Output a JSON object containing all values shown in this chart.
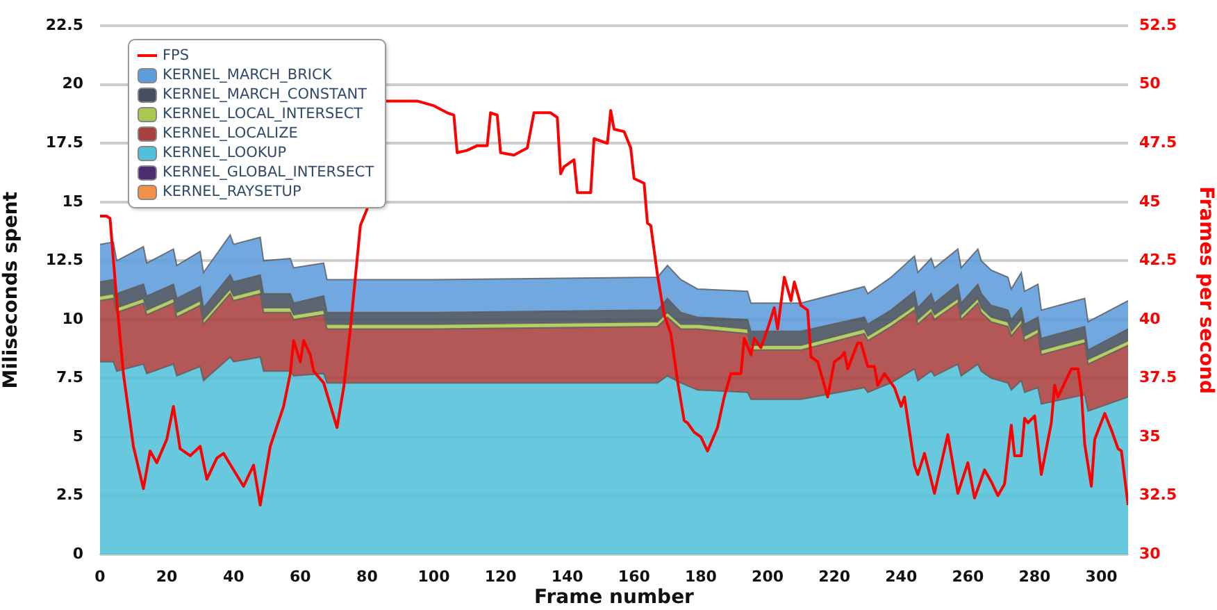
{
  "chart_data": {
    "type": "area",
    "stacked": true,
    "xlabel": "Frame number",
    "ylabel": "Miliseconds spent",
    "y2label": "Frames per second",
    "xlim": [
      0,
      308
    ],
    "xticks": [
      0,
      20,
      40,
      60,
      80,
      100,
      120,
      140,
      160,
      180,
      200,
      220,
      240,
      260,
      280,
      300
    ],
    "ylim": [
      0,
      22.5
    ],
    "yticks": [
      0,
      2.5,
      5,
      7.5,
      10,
      12.5,
      15,
      17.5,
      20,
      22.5
    ],
    "y2lim": [
      30,
      52.5
    ],
    "y2ticks": [
      30,
      32.5,
      35,
      37.5,
      40,
      42.5,
      45,
      47.5,
      50,
      52.5
    ],
    "grid": "y",
    "legend": "top left",
    "x": [
      0,
      4,
      5,
      13,
      14,
      22,
      23,
      30,
      31,
      39,
      40,
      48,
      49,
      57,
      58,
      67,
      68,
      100,
      167,
      170,
      174,
      179,
      194,
      195,
      210,
      229,
      230,
      237,
      244,
      245,
      249,
      250,
      257,
      258,
      263,
      264,
      267,
      272,
      273,
      276,
      277,
      281,
      282,
      295,
      296,
      308
    ],
    "series": [
      {
        "name": "KERNEL_RAYSETUP",
        "color": "#f0904a",
        "values": [
          null,
          null,
          null,
          null,
          null,
          null,
          null,
          null,
          null,
          null,
          null,
          null,
          null,
          null,
          null,
          null,
          null,
          null,
          null,
          null,
          null,
          null,
          null,
          null,
          null,
          null,
          null,
          null,
          null,
          null,
          null,
          null,
          null,
          null,
          null,
          null,
          null,
          null,
          null,
          null,
          null,
          null,
          null,
          null,
          null,
          null
        ]
      },
      {
        "name": "KERNEL_GLOBAL_INTERSECT",
        "color": "#4b2c70",
        "values": [
          null,
          null,
          null,
          null,
          null,
          null,
          null,
          null,
          null,
          null,
          null,
          null,
          null,
          null,
          null,
          null,
          null,
          null,
          null,
          null,
          null,
          null,
          null,
          null,
          null,
          null,
          null,
          null,
          null,
          null,
          null,
          null,
          null,
          null,
          null,
          null,
          null,
          null,
          null,
          null,
          null,
          null,
          null,
          null,
          null,
          null
        ]
      },
      {
        "name": "KERNEL_LOOKUP",
        "color": "#52c0da",
        "values": [
          8.2,
          8.2,
          7.8,
          8.1,
          7.7,
          8.1,
          7.6,
          8.0,
          7.4,
          8.4,
          8.2,
          8.4,
          7.8,
          7.8,
          7.6,
          7.7,
          7.3,
          7.3,
          7.3,
          7.6,
          7.3,
          7.0,
          6.9,
          6.6,
          6.6,
          7.1,
          6.9,
          7.3,
          7.9,
          7.4,
          7.8,
          7.6,
          8.1,
          7.6,
          8.1,
          7.8,
          7.5,
          7.3,
          7.0,
          7.4,
          6.9,
          7.1,
          6.4,
          6.8,
          6.1,
          6.7
        ]
      },
      {
        "name": "KERNEL_LOCALIZE",
        "color": "#a84040",
        "values": [
          2.6,
          2.7,
          2.5,
          2.6,
          2.5,
          2.6,
          2.5,
          2.6,
          2.4,
          2.7,
          2.6,
          2.7,
          2.5,
          2.5,
          2.4,
          2.5,
          2.3,
          2.3,
          2.4,
          2.5,
          2.3,
          2.6,
          2.5,
          2.1,
          2.1,
          2.3,
          2.2,
          2.4,
          2.5,
          2.4,
          2.5,
          2.4,
          2.6,
          2.4,
          2.6,
          2.5,
          2.4,
          2.4,
          2.3,
          2.4,
          2.2,
          2.3,
          2.1,
          2.2,
          2.0,
          2.2
        ]
      },
      {
        "name": "KERNEL_LOCAL_INTERSECT",
        "color": "#a8c850",
        "values": [
          0.2,
          0.2,
          0.2,
          0.2,
          0.2,
          0.2,
          0.2,
          0.2,
          0.2,
          0.2,
          0.2,
          0.2,
          0.2,
          0.2,
          0.2,
          0.2,
          0.2,
          0.2,
          0.2,
          0.2,
          0.2,
          0.2,
          0.2,
          0.2,
          0.2,
          0.2,
          0.2,
          0.2,
          0.2,
          0.2,
          0.2,
          0.2,
          0.2,
          0.2,
          0.2,
          0.2,
          0.2,
          0.2,
          0.2,
          0.2,
          0.2,
          0.2,
          0.2,
          0.2,
          0.2,
          0.2
        ]
      },
      {
        "name": "KERNEL_MARCH_CONSTANT",
        "color": "#46505f",
        "values": [
          0.6,
          0.6,
          0.6,
          0.6,
          0.6,
          0.6,
          0.6,
          0.6,
          0.5,
          0.6,
          0.6,
          0.6,
          0.6,
          0.6,
          0.5,
          0.6,
          0.5,
          0.5,
          0.5,
          0.6,
          0.5,
          0.3,
          0.4,
          0.6,
          0.6,
          0.5,
          0.5,
          0.5,
          0.6,
          0.5,
          0.6,
          0.5,
          0.6,
          0.5,
          0.6,
          0.6,
          0.5,
          0.5,
          0.5,
          0.5,
          0.5,
          0.5,
          0.5,
          0.5,
          0.4,
          0.5
        ]
      },
      {
        "name": "KERNEL_MARCH_BRICK",
        "color": "#5e9cdc",
        "values": [
          1.6,
          1.6,
          1.4,
          1.6,
          1.4,
          1.5,
          1.4,
          1.5,
          1.5,
          1.7,
          1.6,
          1.6,
          1.4,
          1.5,
          1.5,
          1.4,
          1.4,
          1.4,
          1.4,
          1.4,
          1.4,
          1.2,
          1.2,
          1.2,
          1.2,
          1.3,
          1.3,
          1.4,
          1.5,
          1.5,
          1.5,
          1.5,
          1.5,
          1.5,
          1.5,
          1.4,
          1.5,
          1.4,
          1.3,
          1.5,
          1.4,
          1.4,
          1.2,
          1.2,
          1.2,
          1.2
        ]
      },
      {
        "name": "FPS",
        "type": "line",
        "axis": "y2",
        "color": "#ff0000",
        "x": [
          0,
          2,
          3,
          5,
          7,
          10,
          13,
          15,
          17,
          20,
          22,
          24,
          27,
          30,
          32,
          35,
          37,
          40,
          43,
          46,
          48,
          51,
          55,
          57,
          58,
          60,
          61,
          63,
          64,
          67,
          71,
          73,
          75,
          78,
          80,
          85,
          95,
          100,
          104,
          106,
          107,
          110,
          113,
          116,
          117,
          119,
          120,
          124,
          128,
          130,
          135,
          137,
          138,
          139,
          142,
          143,
          147,
          148,
          152,
          153,
          154,
          157,
          159,
          160,
          163,
          164,
          165,
          167,
          169,
          171,
          173,
          175,
          176,
          178,
          180,
          182,
          185,
          187,
          189,
          192,
          193,
          195,
          196,
          198,
          200,
          202,
          203,
          205,
          207,
          208,
          210,
          212,
          213,
          215,
          218,
          220,
          222,
          223,
          224,
          227,
          228,
          230,
          232,
          233,
          235,
          238,
          240,
          241,
          244,
          245,
          247,
          250,
          254,
          257,
          260,
          262,
          265,
          267,
          269,
          271,
          273,
          274,
          276,
          277,
          278,
          280,
          282,
          285,
          286,
          287,
          291,
          293,
          294,
          295,
          297,
          298,
          301,
          303,
          305,
          306,
          308
        ],
        "values": [
          44.4,
          44.4,
          44.3,
          40.8,
          37.7,
          34.6,
          32.8,
          34.4,
          33.9,
          34.9,
          36.3,
          34.5,
          34.2,
          34.6,
          33.2,
          34.1,
          34.3,
          33.6,
          32.9,
          33.8,
          32.1,
          34.6,
          36.3,
          37.7,
          39.1,
          38.2,
          39.1,
          38.5,
          37.8,
          37.3,
          35.4,
          37.1,
          39.6,
          44.0,
          44.7,
          49.3,
          49.3,
          49.1,
          48.8,
          48.7,
          47.1,
          47.2,
          47.4,
          47.4,
          48.8,
          48.7,
          47.1,
          47.0,
          47.3,
          48.8,
          48.8,
          48.6,
          46.2,
          46.5,
          46.8,
          45.4,
          45.4,
          47.7,
          47.5,
          48.9,
          48.1,
          48.0,
          47.3,
          46.0,
          45.8,
          44.1,
          44.0,
          41.9,
          40.2,
          39.4,
          37.4,
          35.7,
          35.6,
          35.2,
          35.0,
          34.4,
          35.4,
          36.7,
          37.7,
          37.7,
          39.2,
          38.5,
          39.2,
          38.8,
          39.6,
          40.5,
          39.6,
          41.8,
          40.8,
          41.6,
          40.6,
          40.4,
          38.4,
          38.2,
          36.7,
          38.2,
          38.4,
          38.6,
          37.9,
          39.0,
          39.0,
          38.0,
          38.0,
          37.2,
          37.7,
          37.1,
          36.3,
          36.7,
          33.8,
          33.4,
          34.3,
          32.6,
          35.1,
          32.6,
          33.9,
          32.4,
          33.6,
          33.1,
          32.5,
          33.0,
          35.5,
          34.2,
          34.2,
          35.8,
          35.6,
          35.9,
          33.4,
          35.6,
          37.2,
          36.7,
          37.9,
          37.9,
          36.9,
          34.7,
          32.9,
          34.9,
          36.0,
          35.3,
          34.5,
          34.4,
          32.1
        ]
      }
    ]
  }
}
